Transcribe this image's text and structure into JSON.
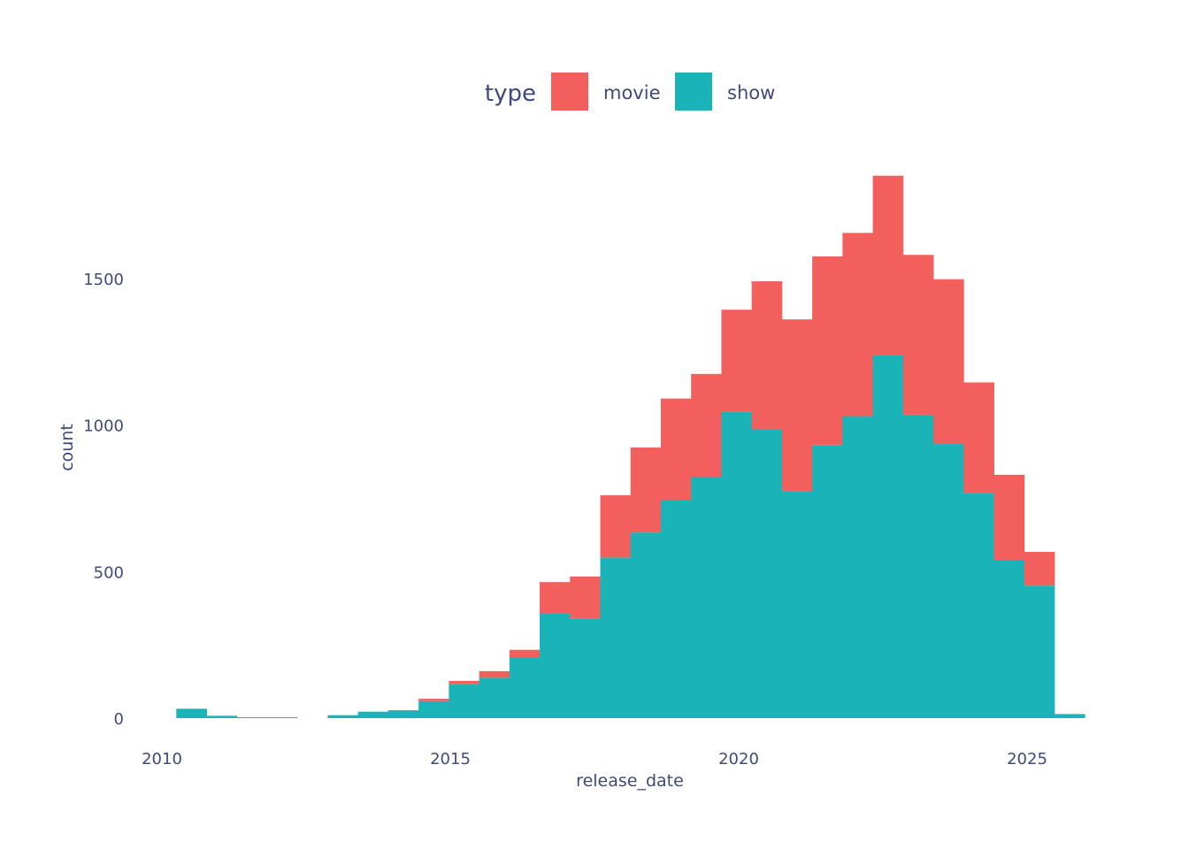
{
  "chart_data": {
    "type": "bar",
    "stacked": true,
    "title": "",
    "xlabel": "release_date",
    "ylabel": "count",
    "legend": {
      "title": "type",
      "placement": "top-center",
      "entries": [
        {
          "name": "movie",
          "color": "#f25f5c"
        },
        {
          "name": "show",
          "color": "#19b3b8"
        }
      ]
    },
    "x_ticks": [
      2010,
      2015,
      2020,
      2025
    ],
    "y_ticks": [
      0,
      500,
      1000,
      1500
    ],
    "xlim": [
      2009.9,
      2026.6
    ],
    "ylim": [
      0,
      1900
    ],
    "grid": false,
    "bin_width": 0.525,
    "bin_starts": [
      2010.25,
      2010.775,
      2011.3,
      2011.825,
      2012.35,
      2012.875,
      2013.4,
      2013.925,
      2014.45,
      2014.975,
      2015.5,
      2016.025,
      2016.55,
      2017.075,
      2017.6,
      2018.125,
      2018.65,
      2019.175,
      2019.7,
      2020.225,
      2020.75,
      2021.275,
      2021.8,
      2022.325,
      2022.85,
      2023.375,
      2023.9,
      2024.425,
      2024.95,
      2025.475
    ],
    "series": [
      {
        "name": "show",
        "color": "#19b3b8",
        "values": [
          32,
          8,
          3,
          3,
          0,
          10,
          22,
          24,
          58,
          115,
          138,
          208,
          356,
          340,
          548,
          633,
          745,
          822,
          1045,
          985,
          775,
          930,
          1030,
          1238,
          1035,
          935,
          768,
          540,
          452,
          12
        ]
      },
      {
        "name": "movie",
        "color": "#f25f5c",
        "values": [
          0,
          0,
          0,
          0,
          0,
          0,
          0,
          3,
          8,
          12,
          22,
          25,
          108,
          143,
          212,
          290,
          345,
          352,
          348,
          505,
          585,
          645,
          625,
          612,
          545,
          562,
          377,
          290,
          115,
          2
        ]
      }
    ]
  }
}
